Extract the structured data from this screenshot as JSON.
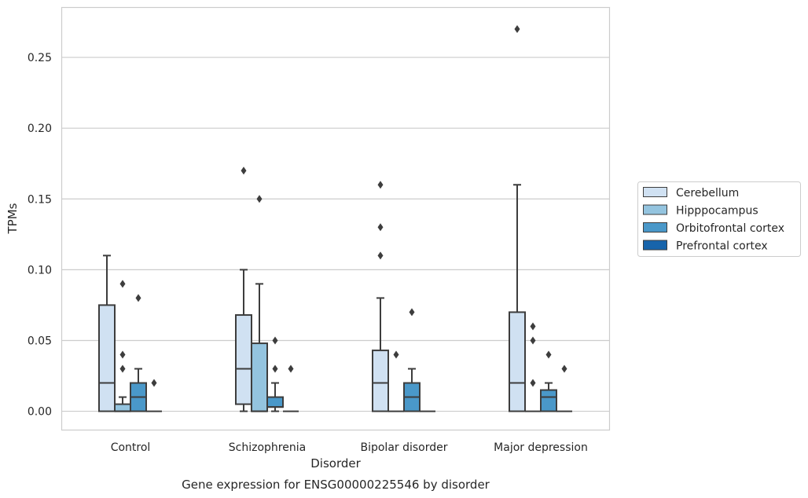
{
  "chart_data": {
    "type": "box",
    "title": "",
    "caption": "Gene expression for ENSG00000225546 by disorder",
    "xlabel": "Disorder",
    "ylabel": "TPMs",
    "ylim": [
      -0.013,
      0.285
    ],
    "yticks": [
      "0.00",
      "0.05",
      "0.10",
      "0.15",
      "0.20",
      "0.25"
    ],
    "grid": true,
    "legend_position": "center-right",
    "categories": [
      "Control",
      "Schizophrenia",
      "Bipolar disorder",
      "Major depression"
    ],
    "series": [
      {
        "name": "Cerebellum",
        "color": "#d0e1f2",
        "boxes": [
          {
            "whislo": 0,
            "q1": 0,
            "med": 0.02,
            "q3": 0.075,
            "whishi": 0.11,
            "fliers": []
          },
          {
            "whislo": 0,
            "q1": 0.005,
            "med": 0.03,
            "q3": 0.068,
            "whishi": 0.1,
            "fliers": [
              0.17
            ]
          },
          {
            "whislo": 0,
            "q1": 0,
            "med": 0.02,
            "q3": 0.043,
            "whishi": 0.08,
            "fliers": [
              0.11,
              0.13,
              0.16
            ]
          },
          {
            "whislo": 0,
            "q1": 0,
            "med": 0.02,
            "q3": 0.07,
            "whishi": 0.16,
            "fliers": [
              0.27
            ]
          }
        ]
      },
      {
        "name": "Hipppocampus",
        "color": "#94c4df",
        "boxes": [
          {
            "whislo": 0,
            "q1": 0,
            "med": 0,
            "q3": 0.005,
            "whishi": 0.01,
            "fliers": [
              0.03,
              0.04,
              0.09
            ]
          },
          {
            "whislo": 0,
            "q1": 0,
            "med": 0,
            "q3": 0.048,
            "whishi": 0.09,
            "fliers": [
              0.15
            ]
          },
          {
            "whislo": 0,
            "q1": 0,
            "med": 0,
            "q3": 0,
            "whishi": 0,
            "fliers": [
              0.04
            ]
          },
          {
            "whislo": 0,
            "q1": 0,
            "med": 0,
            "q3": 0,
            "whishi": 0,
            "fliers": [
              0.02,
              0.05,
              0.06
            ]
          }
        ]
      },
      {
        "name": "Orbitofrontal cortex",
        "color": "#4a98c9",
        "boxes": [
          {
            "whislo": 0,
            "q1": 0,
            "med": 0.01,
            "q3": 0.02,
            "whishi": 0.03,
            "fliers": [
              0.08
            ]
          },
          {
            "whislo": 0,
            "q1": 0.003,
            "med": 0.003,
            "q3": 0.01,
            "whishi": 0.02,
            "fliers": [
              0.03,
              0.05
            ]
          },
          {
            "whislo": 0,
            "q1": 0,
            "med": 0.01,
            "q3": 0.02,
            "whishi": 0.03,
            "fliers": [
              0.07
            ]
          },
          {
            "whislo": 0,
            "q1": 0,
            "med": 0.01,
            "q3": 0.015,
            "whishi": 0.02,
            "fliers": [
              0.04
            ]
          }
        ]
      },
      {
        "name": "Prefrontal cortex",
        "color": "#1764ab",
        "boxes": [
          {
            "whislo": 0,
            "q1": 0,
            "med": 0,
            "q3": 0,
            "whishi": 0,
            "fliers": [
              0.02
            ]
          },
          {
            "whislo": 0,
            "q1": 0,
            "med": 0,
            "q3": 0,
            "whishi": 0,
            "fliers": [
              0.03
            ]
          },
          {
            "whislo": 0,
            "q1": 0,
            "med": 0,
            "q3": 0,
            "whishi": 0,
            "fliers": []
          },
          {
            "whislo": 0,
            "q1": 0,
            "med": 0,
            "q3": 0,
            "whishi": 0,
            "fliers": [
              0.03
            ]
          }
        ]
      }
    ]
  }
}
